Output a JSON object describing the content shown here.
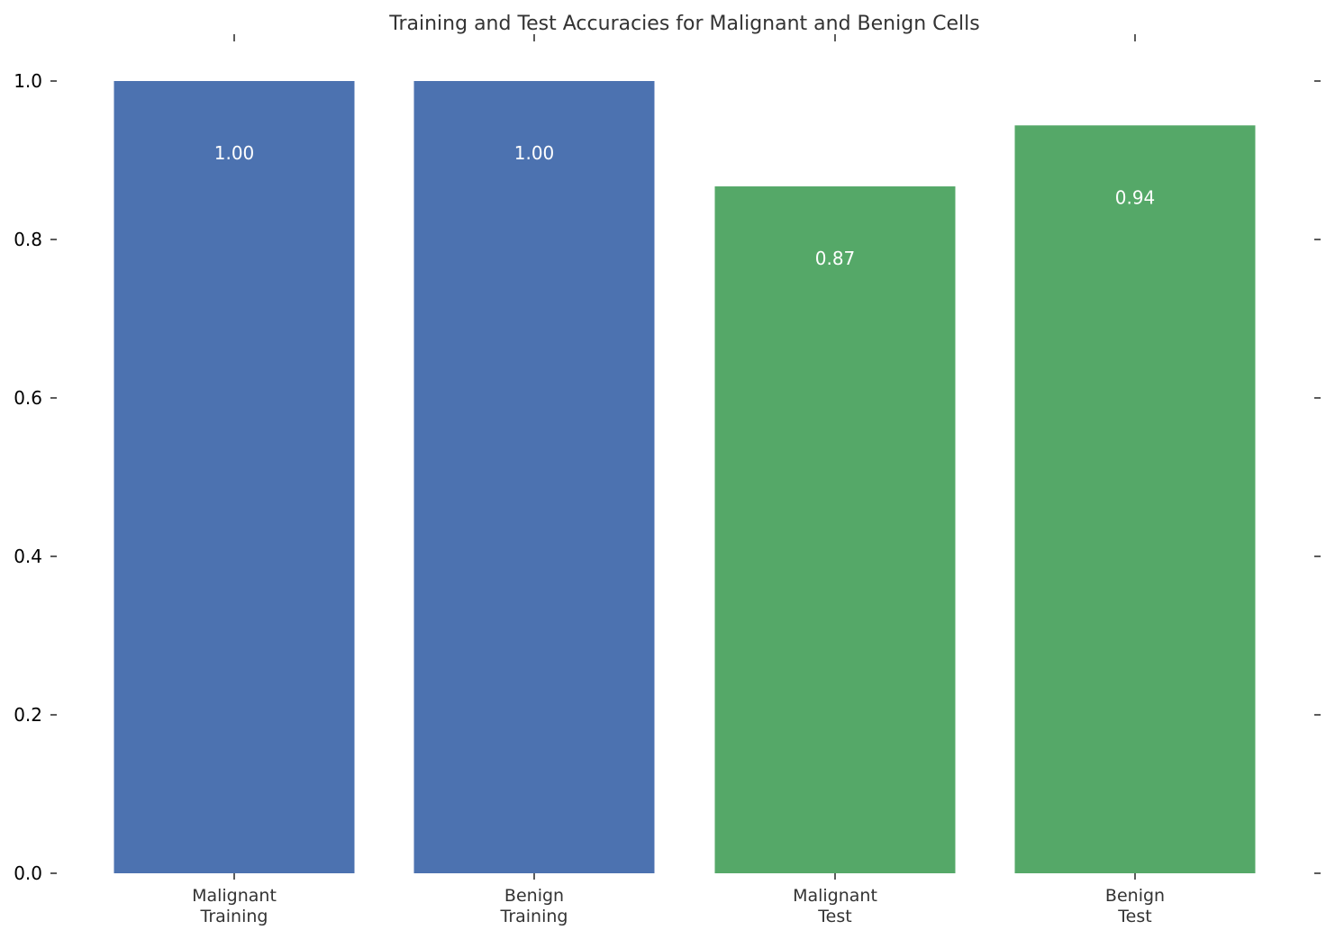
{
  "chart_data": {
    "type": "bar",
    "title": "Training and Test Accuracies for Malignant and Benign Cells",
    "xlabel": "",
    "ylabel": "",
    "categories": [
      [
        "Malignant",
        "Training"
      ],
      [
        "Benign",
        "Training"
      ],
      [
        "Malignant",
        "Test"
      ],
      [
        "Benign",
        "Test"
      ]
    ],
    "values": [
      1.0,
      1.0,
      0.867,
      0.944
    ],
    "data_labels": [
      "1.00",
      "1.00",
      "0.87",
      "0.94"
    ],
    "bar_colors": [
      "#4c72b0",
      "#4c72b0",
      "#55a868",
      "#55a868"
    ],
    "ylim": [
      0,
      1.0
    ],
    "yticks": [
      0.0,
      0.2,
      0.4,
      0.6,
      0.8,
      1.0
    ],
    "ytick_labels": [
      "0.0",
      "0.2",
      "0.4",
      "0.6",
      "0.8",
      "1.0"
    ],
    "grid": false,
    "legend": "none"
  }
}
